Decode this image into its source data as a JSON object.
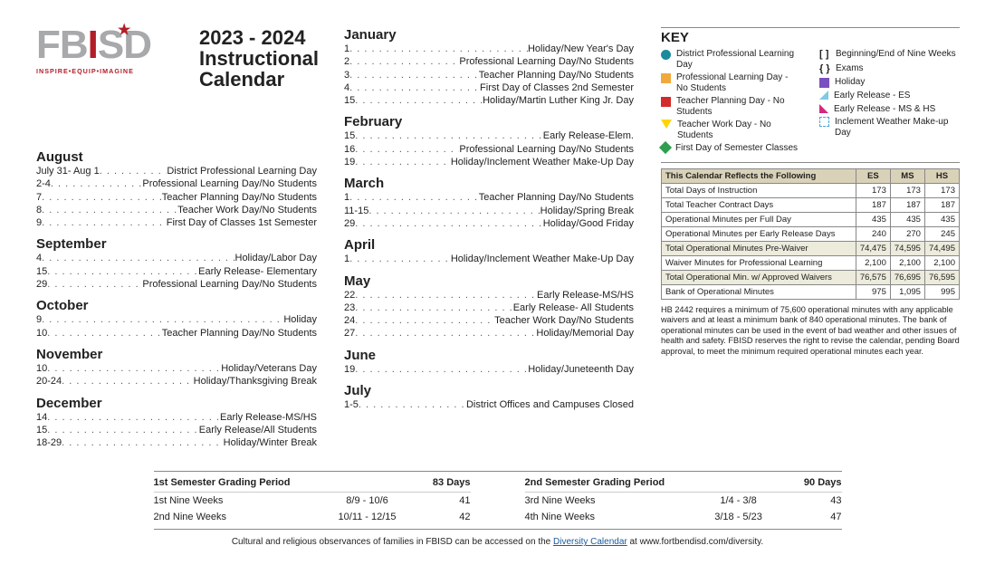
{
  "logo": {
    "text1": "FB",
    "text2": "I",
    "text3": "SD",
    "tagline": "INSPIRE•EQUIP•IMAGINE"
  },
  "title": {
    "line1": "2023 - 2024",
    "line2": "Instructional",
    "line3": "Calendar"
  },
  "months_left": [
    {
      "name": "August",
      "events": [
        {
          "date": "July 31- Aug 1",
          "desc": "District Professional Learning Day"
        },
        {
          "date": "2-4",
          "desc": "Professional Learning Day/No Students"
        },
        {
          "date": "7",
          "desc": "Teacher Planning Day/No Students"
        },
        {
          "date": "8",
          "desc": "Teacher Work Day/No Students"
        },
        {
          "date": "9",
          "desc": "First Day of Classes 1st Semester"
        }
      ]
    },
    {
      "name": "September",
      "events": [
        {
          "date": "4",
          "desc": "Holiday/Labor Day"
        },
        {
          "date": "15",
          "desc": "Early Release- Elementary"
        },
        {
          "date": "29",
          "desc": "Professional Learning Day/No Students"
        }
      ]
    },
    {
      "name": "October",
      "events": [
        {
          "date": "9",
          "desc": "Holiday"
        },
        {
          "date": "10",
          "desc": "Teacher Planning Day/No Students"
        }
      ]
    },
    {
      "name": "November",
      "events": [
        {
          "date": "10",
          "desc": "Holiday/Veterans Day"
        },
        {
          "date": "20-24",
          "desc": "Holiday/Thanksgiving Break"
        }
      ]
    },
    {
      "name": "December",
      "events": [
        {
          "date": "14",
          "desc": "Early Release-MS/HS"
        },
        {
          "date": "15",
          "desc": "Early Release/All Students"
        },
        {
          "date": "18-29",
          "desc": "Holiday/Winter Break"
        }
      ]
    }
  ],
  "months_right": [
    {
      "name": "January",
      "events": [
        {
          "date": "1",
          "desc": "Holiday/New Year's Day"
        },
        {
          "date": "2",
          "desc": "Professional Learning Day/No Students"
        },
        {
          "date": "3",
          "desc": "Teacher Planning Day/No Students"
        },
        {
          "date": "4",
          "desc": "First Day of Classes 2nd Semester"
        },
        {
          "date": "15",
          "desc": "Holiday/Martin Luther King Jr. Day"
        }
      ]
    },
    {
      "name": "February",
      "events": [
        {
          "date": "15",
          "desc": "Early Release-Elem."
        },
        {
          "date": "16",
          "desc": "Professional Learning Day/No Students"
        },
        {
          "date": "19",
          "desc": "Holiday/Inclement Weather Make-Up Day"
        }
      ]
    },
    {
      "name": "March",
      "events": [
        {
          "date": "1",
          "desc": "Teacher Planning Day/No Students"
        },
        {
          "date": "11-15",
          "desc": "Holiday/Spring Break"
        },
        {
          "date": "29",
          "desc": "Holiday/Good Friday"
        }
      ]
    },
    {
      "name": "April",
      "events": [
        {
          "date": "1",
          "desc": "Holiday/Inclement Weather Make-Up Day"
        }
      ]
    },
    {
      "name": "May",
      "events": [
        {
          "date": "22",
          "desc": "Early Release-MS/HS"
        },
        {
          "date": "23",
          "desc": "Early Release- All Students"
        },
        {
          "date": "24",
          "desc": "Teacher Work Day/No Students"
        },
        {
          "date": "27",
          "desc": "Holiday/Memorial Day"
        }
      ]
    },
    {
      "name": "June",
      "events": [
        {
          "date": "19",
          "desc": "Holiday/Juneteenth Day"
        }
      ]
    },
    {
      "name": "July",
      "events": [
        {
          "date": "1-5",
          "desc": "District Offices and Campuses Closed"
        }
      ]
    }
  ],
  "key": {
    "title": "KEY",
    "left": [
      {
        "icon": "teal-circle",
        "text": "District Professional Learning Day",
        "color": "#1b8a9b"
      },
      {
        "icon": "square",
        "text": "Professional Learning Day - No Students",
        "color": "#f2a93c"
      },
      {
        "icon": "square",
        "text": "Teacher Planning Day - No Students",
        "color": "#d32a2a"
      },
      {
        "icon": "tri-down",
        "text": "Teacher Work Day - No Students",
        "color": "#ffd400"
      },
      {
        "icon": "diamond",
        "text": "First Day of Semester Classes",
        "color": "#2e9e4f"
      }
    ],
    "right": [
      {
        "icon": "brackets-square",
        "text": "Beginning/End of Nine Weeks"
      },
      {
        "icon": "brackets-curly",
        "text": "Exams"
      },
      {
        "icon": "square",
        "text": "Holiday",
        "color": "#7a4fbf"
      },
      {
        "icon": "tri-ne",
        "text": "Early Release - ES",
        "color": "#7fc8e8"
      },
      {
        "icon": "tri-nw",
        "text": "Early Release - MS & HS",
        "color": "#d6297e"
      },
      {
        "icon": "dotted-box",
        "text": "Inclement Weather Make-up Day"
      }
    ]
  },
  "reflects": {
    "header": "This Calendar Reflects the Following",
    "cols": [
      "ES",
      "MS",
      "HS"
    ],
    "rows": [
      {
        "label": "Total Days of Instruction",
        "vals": [
          "173",
          "173",
          "173"
        ]
      },
      {
        "label": "Total Teacher Contract Days",
        "vals": [
          "187",
          "187",
          "187"
        ]
      },
      {
        "label": "Operational Minutes per Full Day",
        "vals": [
          "435",
          "435",
          "435"
        ]
      },
      {
        "label": "Operational Minutes per Early Release Days",
        "vals": [
          "240",
          "270",
          "245"
        ]
      },
      {
        "label": "Total Operational Minutes Pre-Waiver",
        "vals": [
          "74,475",
          "74,595",
          "74,495"
        ],
        "shade": true
      },
      {
        "label": "Waiver Minutes for Professional Learning",
        "vals": [
          "2,100",
          "2,100",
          "2,100"
        ]
      },
      {
        "label": "Total Operational Min. w/ Approved Waivers",
        "vals": [
          "76,575",
          "76,695",
          "76,595"
        ],
        "shade": true
      },
      {
        "label": "Bank of Operational Minutes",
        "vals": [
          "975",
          "1,095",
          "995"
        ]
      }
    ]
  },
  "hb_note": "HB 2442 requires a minimum of 75,600 operational minutes with any applicable waivers and at least a minimum bank of 840 operational minutes. The bank of operational minutes can be used in the event of bad weather and other issues of health and safety. FBISD reserves the right to revise the calendar, pending Board approval, to meet the minimum required operational minutes each year.",
  "grading": {
    "s1": {
      "title": "1st Semester Grading Period",
      "total": "83  Days",
      "rows": [
        {
          "label": "1st Nine Weeks",
          "dates": "8/9 - 10/6",
          "days": "41"
        },
        {
          "label": "2nd Nine Weeks",
          "dates": "10/11 - 12/15",
          "days": "42"
        }
      ]
    },
    "s2": {
      "title": "2nd Semester Grading Period",
      "total": "90 Days",
      "rows": [
        {
          "label": "3rd Nine Weeks",
          "dates": "1/4 - 3/8",
          "days": "43"
        },
        {
          "label": "4th Nine Weeks",
          "dates": "3/18 - 5/23",
          "days": "47"
        }
      ]
    }
  },
  "footer": {
    "pre": "Cultural and religious observances of families in FBISD can be accessed on the ",
    "link": "Diversity Calendar",
    "post": " at www.fortbendisd.com/diversity."
  }
}
